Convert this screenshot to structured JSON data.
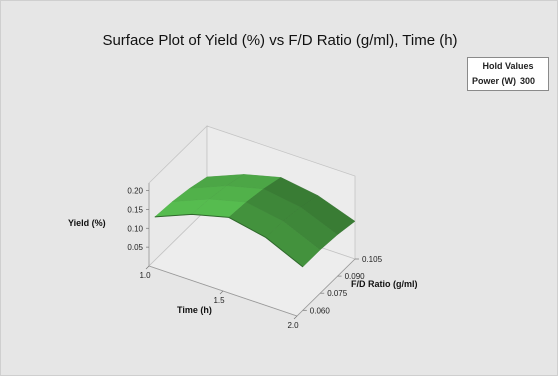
{
  "chart_data": {
    "type": "surface",
    "title": "Surface Plot of Yield (%) vs F/D Ratio (g/ml), Time (h)",
    "xlabel": "Time (h)",
    "ylabel": "F/D Ratio (g/ml)",
    "zlabel": "Yield (%)",
    "x_ticks": [
      "1.0",
      "1.5",
      "2.0"
    ],
    "y_ticks": [
      "0.060",
      "0.075",
      "0.090",
      "0.105"
    ],
    "z_ticks": [
      "0.05",
      "0.10",
      "0.15",
      "0.20"
    ],
    "xlim": [
      1.0,
      2.0
    ],
    "ylim": [
      0.055,
      0.105
    ],
    "zlim": [
      0.0,
      0.22
    ],
    "surface_color": "#3f8a3a",
    "surface_rows": [
      {
        "f_d_ratio": 0.105,
        "time": [
          1.0,
          1.25,
          1.5,
          1.75,
          2.0
        ],
        "yield": [
          0.085,
          0.125,
          0.15,
          0.135,
          0.1
        ]
      },
      {
        "f_d_ratio": 0.09,
        "time": [
          1.0,
          1.25,
          1.5,
          1.75,
          2.0
        ],
        "yield": [
          0.1,
          0.14,
          0.165,
          0.15,
          0.11
        ]
      },
      {
        "f_d_ratio": 0.075,
        "time": [
          1.0,
          1.25,
          1.5,
          1.75,
          2.0
        ],
        "yield": [
          0.11,
          0.15,
          0.175,
          0.158,
          0.115
        ]
      },
      {
        "f_d_ratio": 0.06,
        "time": [
          1.0,
          1.25,
          1.5,
          1.75,
          2.0
        ],
        "yield": [
          0.115,
          0.155,
          0.18,
          0.16,
          0.115
        ]
      }
    ]
  },
  "hold_values": {
    "title": "Hold Values",
    "name": "Power (W)",
    "value": "300"
  }
}
